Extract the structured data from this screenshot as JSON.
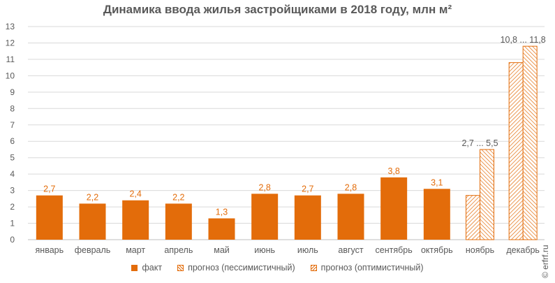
{
  "title": "Динамика ввода жилья застройщиками в 2018 году, млн м²",
  "watermark": "© erfrf.ru",
  "colors": {
    "fact": "#e36c0a",
    "grid": "#d9d9d9",
    "text": "#595959",
    "label": "#e36c0a"
  },
  "legend": [
    {
      "label": "факт",
      "style": "solid"
    },
    {
      "label": "прогноз (пессимистичный)",
      "style": "hatch-pess"
    },
    {
      "label": "прогноз (оптимистичный)",
      "style": "hatch-opt"
    }
  ],
  "chart_data": {
    "type": "bar",
    "title": "Динамика ввода жилья застройщиками в 2018 году, млн м²",
    "ylim": [
      0,
      13
    ],
    "yticks": [
      0,
      1,
      2,
      3,
      4,
      5,
      6,
      7,
      8,
      9,
      10,
      11,
      12,
      13
    ],
    "grid": true,
    "legend_position": "bottom",
    "categories": [
      "январь",
      "февраль",
      "март",
      "апрель",
      "май",
      "июнь",
      "июль",
      "август",
      "сентябрь",
      "октябрь",
      "ноябрь",
      "декабрь"
    ],
    "series": [
      {
        "name": "факт",
        "values": [
          2.7,
          2.2,
          2.4,
          2.2,
          1.3,
          2.8,
          2.7,
          2.8,
          3.8,
          3.1,
          null,
          null
        ],
        "labels": [
          "2,7",
          "2,2",
          "2,4",
          "2,2",
          "1,3",
          "2,8",
          "2,7",
          "2,8",
          "3,8",
          "3,1",
          null,
          null
        ]
      },
      {
        "name": "прогноз (пессимистичный)",
        "values": [
          null,
          null,
          null,
          null,
          null,
          null,
          null,
          null,
          null,
          null,
          2.7,
          10.8
        ]
      },
      {
        "name": "прогноз (оптимистичный)",
        "values": [
          null,
          null,
          null,
          null,
          null,
          null,
          null,
          null,
          null,
          null,
          5.5,
          11.8
        ]
      }
    ],
    "range_labels": [
      {
        "category": "ноябрь",
        "text": "2,7 ... 5,5"
      },
      {
        "category": "декабрь",
        "text": "10,8 ... 11,8"
      }
    ]
  }
}
